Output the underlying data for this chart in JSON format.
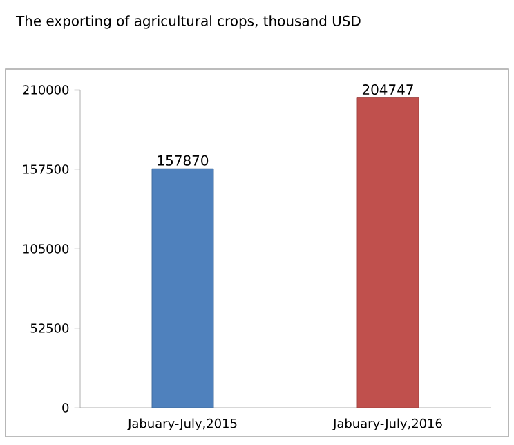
{
  "chart_data": {
    "type": "bar",
    "title": "The exporting of agricultural crops, thousand USD",
    "categories": [
      "Jabuary-July,2015",
      "Jabuary-July,2016"
    ],
    "values": [
      157870,
      204747
    ],
    "colors": [
      "#4f81bd",
      "#c0504d"
    ],
    "ylim": [
      0,
      210000
    ],
    "yticks": [
      0,
      52500,
      105000,
      157500,
      210000
    ],
    "data_labels": true
  }
}
